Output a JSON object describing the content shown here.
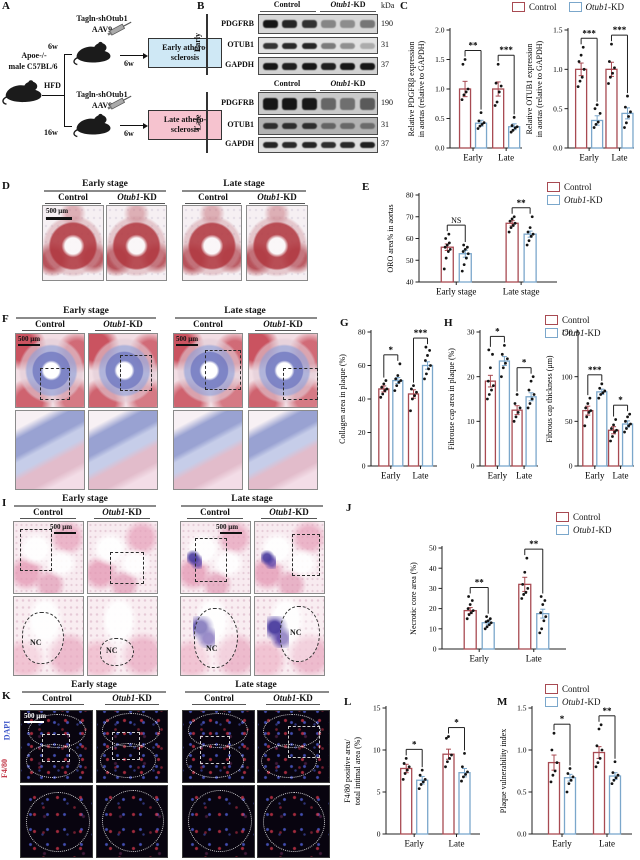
{
  "colors": {
    "control": "#a84a52",
    "kd": "#7ba7cb",
    "dapi_label": "#3c55c8",
    "f480_label": "#c23848",
    "early_box": "#cfe8f5",
    "late_box": "#f6c3cf"
  },
  "legend": {
    "control": "Control",
    "kd_italic": "Otub1",
    "kd_rest": "-KD"
  },
  "panel_labels": {
    "a": "A",
    "b": "B",
    "c": "C",
    "d": "D",
    "e": "E",
    "f": "F",
    "g": "G",
    "h": "H",
    "i": "I",
    "j": "J",
    "k": "K",
    "l": "L",
    "m": "M"
  },
  "panel_a": {
    "mouse_line1": "Apoe-/-",
    "mouse_line2": "male C57BL/6",
    "hfd": "HFD",
    "virus": "Tagln-shOtub1",
    "aav": "AAV9",
    "top_pre": "6w",
    "top_post": "6w",
    "bottom_pre": "16w",
    "bottom_post": "6w",
    "early_box_line1": "Early athero-",
    "early_box_line2": "sclerosis",
    "late_box_line1": "Late athero-",
    "late_box_line2": "sclerosis"
  },
  "panel_b": {
    "kda_header": "kDa",
    "col_control": "Control",
    "groups": [
      {
        "stage": "Early",
        "rows": [
          {
            "name": "PDGFRB",
            "kda": "190"
          },
          {
            "name": "OTUB1",
            "kda": "31"
          },
          {
            "name": "GAPDH",
            "kda": "37"
          }
        ]
      },
      {
        "stage": "Late",
        "rows": [
          {
            "name": "PDGFRB",
            "kda": "190"
          },
          {
            "name": "OTUB1",
            "kda": "31"
          },
          {
            "name": "GAPDH",
            "kda": "37"
          }
        ]
      }
    ]
  },
  "image_headers": {
    "early_stage": "Early stage",
    "late_stage": "Late stage",
    "control": "Control",
    "scalebar": "500 μm"
  },
  "panel_i": {
    "nc": "NC"
  },
  "panel_k": {
    "dapi": "DAPI",
    "f480": "F4/80"
  },
  "chart_data": [
    {
      "id": "c_pdgfrb",
      "type": "bar",
      "ylabel_lines": [
        "Relative PDGFRβ expression",
        "in aortas (relative to GAPDH)"
      ],
      "ylim": [
        0,
        2
      ],
      "ytick_vals": [
        0,
        0.5,
        1,
        1.5,
        2
      ],
      "ytick_labels": [
        "0.0",
        "0.5",
        "1.0",
        "1.5",
        "2.0"
      ],
      "categories": [
        "Early",
        "Late"
      ],
      "series": [
        {
          "name": "Control",
          "values": [
            1.0,
            1.0
          ],
          "err": [
            0.13,
            0.12
          ],
          "points": [
            [
              0.82,
              0.9,
              0.95,
              1.0,
              1.42,
              1.5
            ],
            [
              0.72,
              0.78,
              0.95,
              1.05,
              1.1,
              1.42
            ]
          ]
        },
        {
          "name": "Otub1-KD",
          "values": [
            0.42,
            0.36
          ],
          "err": [
            0.05,
            0.05
          ],
          "points": [
            [
              0.33,
              0.37,
              0.4,
              0.43,
              0.46,
              0.6
            ],
            [
              0.27,
              0.3,
              0.34,
              0.36,
              0.38,
              0.52
            ]
          ]
        }
      ],
      "sig": [
        "**",
        "***"
      ]
    },
    {
      "id": "c_otub1",
      "type": "bar",
      "ylabel_lines": [
        "Relative OTUB1 expression",
        "in aortas (relative to GAPDH)"
      ],
      "ylim": [
        0,
        1.5
      ],
      "ytick_vals": [
        0,
        0.5,
        1,
        1.5
      ],
      "ytick_labels": [
        "0.0",
        "0.5",
        "1.0",
        "1.5"
      ],
      "categories": [
        "Early",
        "Late"
      ],
      "series": [
        {
          "name": "Control",
          "values": [
            1.0,
            1.0
          ],
          "err": [
            0.08,
            0.09
          ],
          "points": [
            [
              0.78,
              0.85,
              0.9,
              1.0,
              1.1,
              1.18,
              1.28
            ],
            [
              0.82,
              0.9,
              0.95,
              1.02,
              1.1,
              1.32
            ]
          ]
        },
        {
          "name": "Otub1-KD",
          "values": [
            0.35,
            0.44
          ],
          "err": [
            0.06,
            0.07
          ],
          "points": [
            [
              0.26,
              0.3,
              0.33,
              0.44,
              0.5,
              0.55
            ],
            [
              0.26,
              0.32,
              0.4,
              0.46,
              0.52,
              0.66
            ]
          ]
        }
      ],
      "sig": [
        "***",
        "***"
      ]
    },
    {
      "id": "e_oro",
      "type": "bar",
      "ylabel_lines": [
        "ORO area% in aortas"
      ],
      "ylim": [
        40,
        80
      ],
      "ytick_vals": [
        40,
        50,
        60,
        70,
        80
      ],
      "categories": [
        "Early stage",
        "Late stage"
      ],
      "series": [
        {
          "name": "Control",
          "values": [
            56,
            67
          ],
          "err": [
            1.5,
            1.2
          ],
          "points": [
            [
              46,
              51,
              54,
              55,
              56,
              57,
              58,
              60,
              62
            ],
            [
              63,
              65,
              66,
              67,
              68,
              69,
              70
            ]
          ]
        },
        {
          "name": "Otub1-KD",
          "values": [
            53,
            62
          ],
          "err": [
            1.6,
            1.4
          ],
          "points": [
            [
              45,
              48,
              51,
              53,
              54,
              55,
              56,
              57
            ],
            [
              57,
              59,
              61,
              62,
              63,
              65,
              70
            ]
          ]
        }
      ],
      "sig": [
        "NS",
        "**"
      ]
    },
    {
      "id": "g_collagen",
      "type": "bar",
      "ylabel_lines": [
        "Collagen area in plaque (%)"
      ],
      "ylim": [
        0,
        80
      ],
      "ytick_vals": [
        0,
        20,
        40,
        60,
        80
      ],
      "categories": [
        "Early",
        "Late"
      ],
      "series": [
        {
          "name": "Control",
          "values": [
            46,
            43
          ],
          "err": [
            1.8,
            2.5
          ],
          "points": [
            [
              41,
              43,
              45,
              46,
              47,
              49,
              51
            ],
            [
              33,
              40,
              42,
              44,
              46,
              48
            ]
          ]
        },
        {
          "name": "Otub1-KD",
          "values": [
            51,
            60
          ],
          "err": [
            1.8,
            2.2
          ],
          "points": [
            [
              45,
              48,
              50,
              51,
              52,
              54,
              61
            ],
            [
              52,
              55,
              58,
              60,
              63,
              66,
              69,
              71
            ]
          ]
        }
      ],
      "sig": [
        "*",
        "***"
      ]
    },
    {
      "id": "h_cap_area",
      "type": "bar",
      "ylabel_lines": [
        "Fibrouse cap area in plaque (%)"
      ],
      "ylim": [
        0,
        30
      ],
      "ytick_vals": [
        0,
        10,
        20,
        30
      ],
      "categories": [
        "Early",
        "Late"
      ],
      "series": [
        {
          "name": "Control",
          "values": [
            19,
            12.5
          ],
          "err": [
            1.3,
            1.0
          ],
          "points": [
            [
              15,
              16,
              17,
              18,
              19,
              22,
              25,
              26
            ],
            [
              10,
              11,
              12,
              13,
              14,
              16
            ]
          ]
        },
        {
          "name": "Otub1-KD",
          "values": [
            23.5,
            15.5
          ],
          "err": [
            1.0,
            0.9
          ],
          "points": [
            [
              20,
              22,
              23,
              24,
              25,
              27
            ],
            [
              13,
              14,
              15,
              16,
              17,
              19,
              20
            ]
          ]
        }
      ],
      "sig": [
        "*",
        "*"
      ]
    },
    {
      "id": "h_cap_thickness",
      "type": "bar",
      "ylabel_lines": [
        "Fibrous cap thickness (μm)"
      ],
      "ylim": [
        0,
        150
      ],
      "ytick_vals": [
        0,
        50,
        100,
        150
      ],
      "categories": [
        "Early",
        "Late"
      ],
      "series": [
        {
          "name": "Control",
          "values": [
            62,
            40
          ],
          "err": [
            5,
            4
          ],
          "points": [
            [
              45,
              55,
              60,
              62,
              65,
              70,
              76
            ],
            [
              28,
              33,
              38,
              40,
              42,
              46,
              52
            ]
          ]
        },
        {
          "name": "Otub1-KD",
          "values": [
            83,
            47
          ],
          "err": [
            3,
            3.5
          ],
          "points": [
            [
              76,
              80,
              82,
              84,
              87,
              92
            ],
            [
              38,
              42,
              45,
              47,
              50,
              55,
              58
            ]
          ]
        }
      ],
      "sig": [
        "***",
        "*"
      ]
    },
    {
      "id": "j_necrotic",
      "type": "bar",
      "ylabel_lines": [
        "Necrotic core area (%)"
      ],
      "ylim": [
        0,
        50
      ],
      "ytick_vals": [
        0,
        10,
        20,
        30,
        40,
        50
      ],
      "categories": [
        "Early",
        "Late"
      ],
      "series": [
        {
          "name": "Control",
          "values": [
            19,
            32
          ],
          "err": [
            1.5,
            3.5
          ],
          "points": [
            [
              15,
              17,
              18,
              19,
              20,
              22,
              24,
              26
            ],
            [
              25,
              27,
              28,
              30,
              32,
              38,
              45
            ]
          ]
        },
        {
          "name": "Otub1-KD",
          "values": [
            13,
            17.5
          ],
          "err": [
            1.0,
            2.2
          ],
          "points": [
            [
              10,
              11,
              12,
              13,
              13.5,
              14,
              15,
              16
            ],
            [
              8,
              10,
              14,
              16,
              18,
              22,
              24,
              26
            ]
          ]
        }
      ],
      "sig": [
        "**",
        "**"
      ]
    },
    {
      "id": "l_f480",
      "type": "bar",
      "ylabel_lines": [
        "F4/80 positive area/",
        "total intimal area (%)"
      ],
      "ylim": [
        0,
        15
      ],
      "ytick_vals": [
        0,
        5,
        10,
        15
      ],
      "categories": [
        "Early",
        "Late"
      ],
      "series": [
        {
          "name": "Control",
          "values": [
            7.8,
            9.5
          ],
          "err": [
            0.5,
            0.6
          ],
          "points": [
            [
              6.5,
              7.2,
              7.6,
              8,
              8.4,
              9
            ],
            [
              8,
              8.6,
              9,
              9.4,
              11.4,
              11.6
            ]
          ]
        },
        {
          "name": "Otub1-KD",
          "values": [
            6.4,
            7.3
          ],
          "err": [
            0.45,
            0.5
          ],
          "points": [
            [
              5.4,
              5.9,
              6.2,
              6.5,
              7,
              7.6
            ],
            [
              6.3,
              6.8,
              7.1,
              7.4,
              8,
              9.6
            ]
          ]
        }
      ],
      "sig": [
        "*",
        "*"
      ]
    },
    {
      "id": "m_vulnerability",
      "type": "bar",
      "ylabel_lines": [
        "Plaque vulnerability index"
      ],
      "ylim": [
        0,
        1.5
      ],
      "ytick_vals": [
        0,
        0.5,
        1,
        1.5
      ],
      "ytick_labels": [
        "0.0",
        "0.5",
        "1.0",
        "1.5"
      ],
      "categories": [
        "Early",
        "Late"
      ],
      "series": [
        {
          "name": "Control",
          "values": [
            0.85,
            0.97
          ],
          "err": [
            0.09,
            0.07
          ],
          "points": [
            [
              0.62,
              0.7,
              0.75,
              0.85,
              1.0,
              1.2
            ],
            [
              0.8,
              0.85,
              0.9,
              1.0,
              1.05,
              1.25,
              1.3
            ]
          ]
        },
        {
          "name": "Otub1-KD",
          "values": [
            0.67,
            0.69
          ],
          "err": [
            0.04,
            0.04
          ],
          "points": [
            [
              0.5,
              0.6,
              0.64,
              0.68,
              0.72,
              0.78
            ],
            [
              0.6,
              0.64,
              0.67,
              0.7,
              0.73,
              0.86
            ]
          ]
        }
      ],
      "sig": [
        "*",
        "**"
      ]
    }
  ]
}
